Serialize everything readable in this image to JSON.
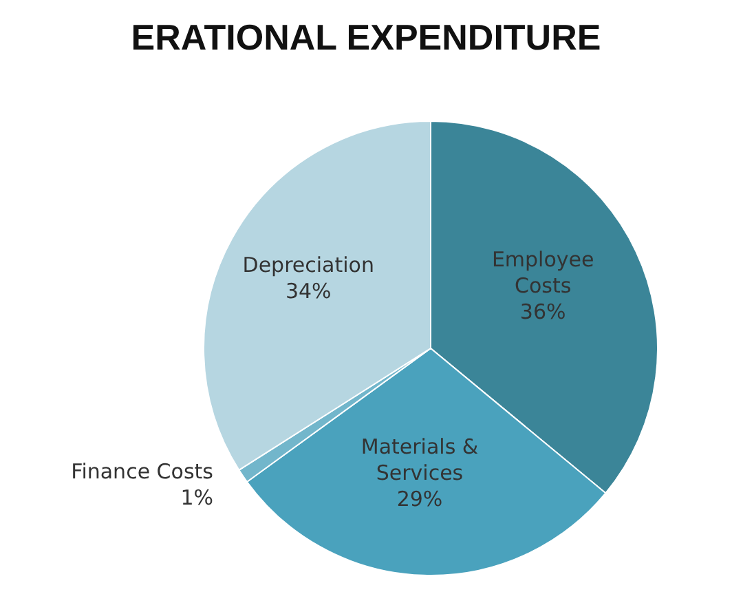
{
  "chart_data": {
    "type": "pie",
    "title": "ERATIONAL EXPENDITURE",
    "categories": [
      "Employee Costs",
      "Materials & Services",
      "Finance Costs",
      "Depreciation"
    ],
    "values": [
      36,
      29,
      1,
      34
    ],
    "value_labels": [
      "36%",
      "29%",
      "1%",
      "34%"
    ],
    "colors": [
      "#3b8598",
      "#4aa2bd",
      "#72b6cb",
      "#b6d6e1"
    ],
    "legend": false
  }
}
